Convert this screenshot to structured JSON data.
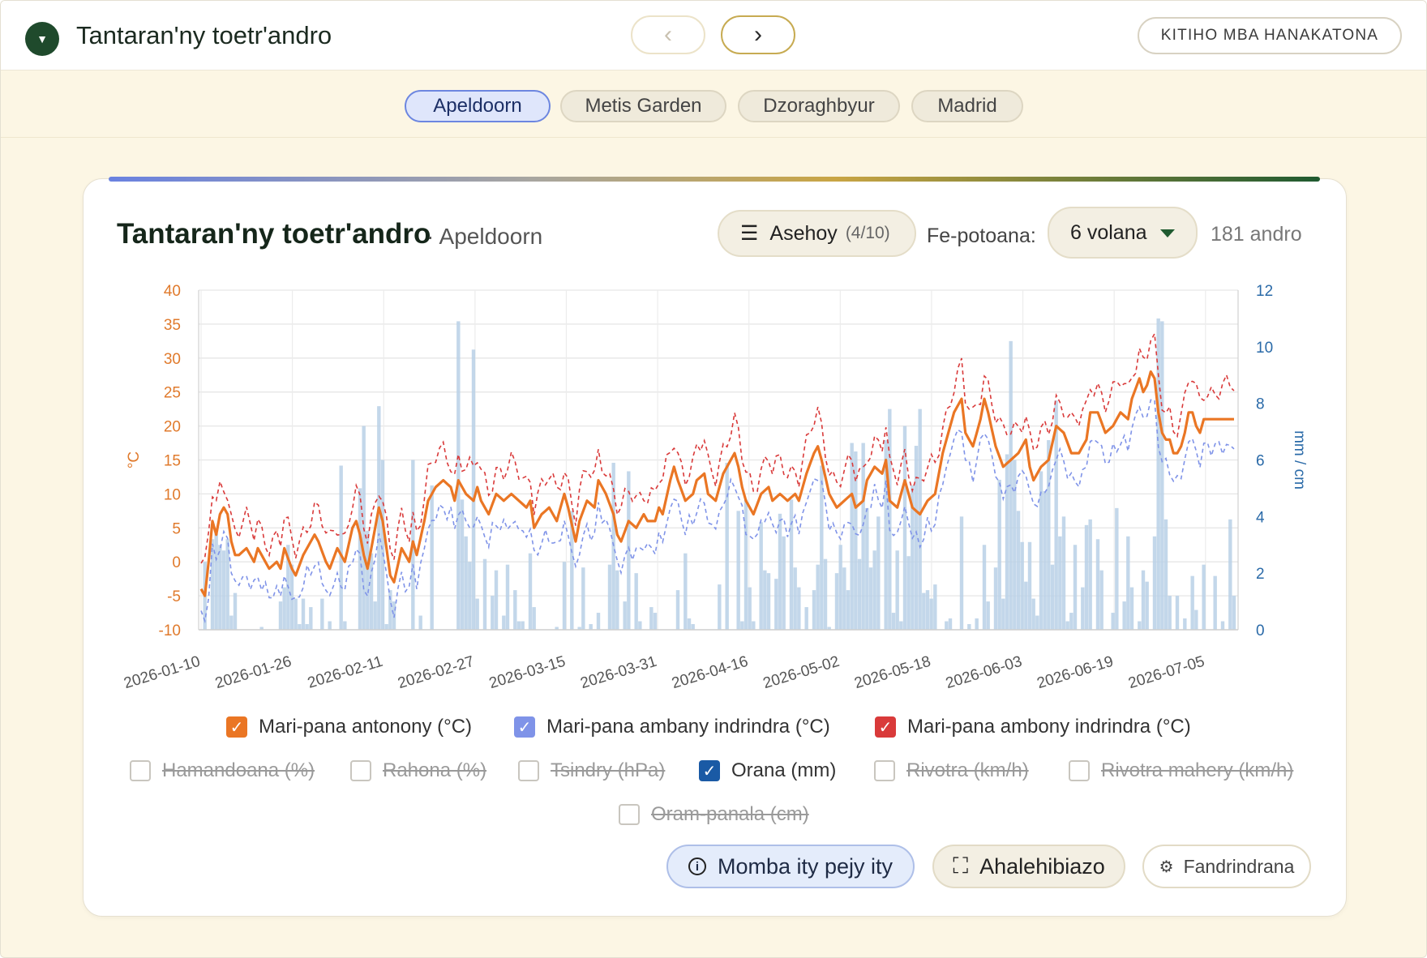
{
  "header": {
    "logo_glyph": "▼",
    "title": "Tantaran'ny toetr'andro",
    "prev": "‹",
    "next": "›",
    "cta": "KITIHO MBA HANAKATONA"
  },
  "locations": [
    "Apeldoorn",
    "Metis Garden",
    "Dzoraghbyur",
    "Madrid"
  ],
  "card": {
    "title": "Tantaran'ny toetr'andro",
    "subtitle": "· Apeldoorn",
    "menu_icon": "☰",
    "menu_label": "Asehoy",
    "menu_count": "(4/10)",
    "range_label": "Fe-potoana:",
    "range_value": "6 volana",
    "days": "181 andro"
  },
  "legend": {
    "row1": [
      {
        "label": "Mari-pana antonony (°C)",
        "checked": true,
        "color": "#ea7624"
      },
      {
        "label": "Mari-pana ambany indrindra (°C)",
        "checked": true,
        "color": "#7f93e8"
      },
      {
        "label": "Mari-pana ambony indrindra (°C)",
        "checked": true,
        "color": "#d93a3a"
      }
    ],
    "row2": [
      {
        "label": "Hamandoana (%)",
        "checked": false
      },
      {
        "label": "Rahona (%)",
        "checked": false
      },
      {
        "label": "Tsindry (hPa)",
        "checked": false
      },
      {
        "label": "Orana (mm)",
        "checked": true,
        "color": "#1a5aa5"
      },
      {
        "label": "Rivotra (km/h)",
        "checked": false
      },
      {
        "label": "Rivotra mahery (km/h)",
        "checked": false
      }
    ],
    "row3": [
      {
        "label": "Oram-panala (cm)",
        "checked": false
      }
    ],
    "check_glyph": "✓"
  },
  "buttons": {
    "info": "Momba ity pejy ity",
    "info_icon": "i",
    "fullscreen_icon": "⛶",
    "fullscreen": "Ahalehibiazo",
    "settings_icon": "⚙",
    "settings": "Fandrindrana"
  },
  "colors": {
    "mean": "#ea7624",
    "min": "#7f93e8",
    "max": "#d93a3a",
    "rain": "#b9d0e6",
    "left_axis": "#e07a2c",
    "right_axis": "#2a6aa8"
  },
  "chart_data": {
    "type": "line+bar",
    "x_dates": [
      "2026-01-10",
      "2026-01-26",
      "2026-02-11",
      "2026-02-27",
      "2026-03-15",
      "2026-03-31",
      "2026-04-16",
      "2026-05-02",
      "2026-05-18",
      "2026-06-03",
      "2026-06-19",
      "2026-07-05"
    ],
    "y_left_label": "°C",
    "y_left_ticks": [
      "40",
      "35",
      "30",
      "25",
      "20",
      "15",
      "10",
      "5",
      "0",
      "-5",
      "-10"
    ],
    "y_left_range": [
      -10,
      40
    ],
    "y_right_label": "mm / cm",
    "y_right_ticks": [
      "12",
      "10",
      "8",
      "6",
      "4",
      "2",
      "0"
    ],
    "y_right_range": [
      0,
      12
    ],
    "days": 181,
    "series_keys": [
      {
        "name": "Mari-pana antonony (°C)",
        "key": "mean",
        "axis": "left",
        "style": "solid"
      },
      {
        "name": "Mari-pana ambany indrindra (°C)",
        "key": "min",
        "axis": "left",
        "style": "dashed"
      },
      {
        "name": "Mari-pana ambony indrindra (°C)",
        "key": "max",
        "axis": "left",
        "style": "dashed"
      },
      {
        "name": "Orana (mm)",
        "key": "rain",
        "axis": "right",
        "style": "bar"
      }
    ],
    "mean_anchors": [
      [
        0,
        -4
      ],
      [
        1,
        -5
      ],
      [
        2,
        0
      ],
      [
        3,
        6
      ],
      [
        4,
        4
      ],
      [
        5,
        7
      ],
      [
        6,
        8
      ],
      [
        7,
        7
      ],
      [
        8,
        3
      ],
      [
        9,
        1
      ],
      [
        10,
        1
      ],
      [
        12,
        2
      ],
      [
        13,
        1
      ],
      [
        14,
        0
      ],
      [
        15,
        2
      ],
      [
        16,
        1
      ],
      [
        18,
        -1
      ],
      [
        20,
        0
      ],
      [
        21,
        -1
      ],
      [
        22,
        2
      ],
      [
        24,
        -1
      ],
      [
        25,
        -2
      ],
      [
        27,
        1
      ],
      [
        29,
        3
      ],
      [
        30,
        4
      ],
      [
        31,
        3
      ],
      [
        33,
        0
      ],
      [
        34,
        -1
      ],
      [
        36,
        2
      ],
      [
        38,
        0
      ],
      [
        40,
        5
      ],
      [
        41,
        6
      ],
      [
        42,
        4
      ],
      [
        43,
        1
      ],
      [
        44,
        -1
      ],
      [
        46,
        5
      ],
      [
        47,
        8
      ],
      [
        48,
        6
      ],
      [
        50,
        -2
      ],
      [
        51,
        -3
      ],
      [
        53,
        2
      ],
      [
        55,
        0
      ],
      [
        56,
        3
      ],
      [
        57,
        1
      ],
      [
        59,
        6
      ],
      [
        60,
        9
      ],
      [
        62,
        11
      ],
      [
        64,
        12
      ],
      [
        66,
        11
      ],
      [
        67,
        9
      ],
      [
        68,
        12
      ],
      [
        70,
        10
      ],
      [
        72,
        9
      ],
      [
        73,
        11
      ],
      [
        74,
        9
      ],
      [
        76,
        7
      ],
      [
        78,
        10
      ],
      [
        80,
        9
      ],
      [
        82,
        10
      ],
      [
        84,
        9
      ],
      [
        86,
        8
      ],
      [
        87,
        9
      ],
      [
        88,
        5
      ],
      [
        90,
        7
      ],
      [
        92,
        8
      ],
      [
        94,
        6
      ],
      [
        96,
        10
      ],
      [
        97,
        8
      ],
      [
        99,
        3
      ],
      [
        100,
        6
      ],
      [
        102,
        9
      ],
      [
        104,
        8
      ],
      [
        105,
        12
      ],
      [
        107,
        10
      ],
      [
        109,
        7
      ],
      [
        110,
        4
      ],
      [
        111,
        3
      ],
      [
        113,
        6
      ],
      [
        115,
        5
      ],
      [
        117,
        7
      ],
      [
        118,
        6
      ],
      [
        120,
        6
      ],
      [
        121,
        8
      ],
      [
        122,
        7
      ],
      [
        124,
        12
      ],
      [
        125,
        14
      ],
      [
        126,
        12
      ],
      [
        128,
        9
      ],
      [
        130,
        10
      ],
      [
        131,
        12
      ],
      [
        133,
        13
      ],
      [
        134,
        10
      ],
      [
        136,
        9
      ],
      [
        138,
        13
      ],
      [
        140,
        15
      ],
      [
        141,
        16
      ],
      [
        142,
        14
      ],
      [
        143,
        11
      ],
      [
        144,
        9
      ],
      [
        146,
        7
      ],
      [
        148,
        10
      ],
      [
        150,
        11
      ],
      [
        151,
        9
      ],
      [
        153,
        10
      ],
      [
        155,
        9
      ],
      [
        157,
        10
      ],
      [
        158,
        9
      ],
      [
        160,
        13
      ],
      [
        162,
        16
      ],
      [
        163,
        17
      ],
      [
        164,
        15
      ],
      [
        166,
        10
      ],
      [
        168,
        8
      ],
      [
        170,
        9
      ],
      [
        172,
        10
      ],
      [
        173,
        8
      ],
      [
        175,
        9
      ],
      [
        176,
        12
      ],
      [
        178,
        14
      ],
      [
        180,
        13
      ],
      [
        181,
        15
      ],
      [
        182,
        9
      ],
      [
        184,
        8
      ],
      [
        186,
        12
      ],
      [
        188,
        8
      ],
      [
        190,
        7
      ],
      [
        192,
        9
      ],
      [
        194,
        10
      ],
      [
        196,
        16
      ],
      [
        198,
        20
      ],
      [
        199,
        22
      ],
      [
        201,
        24
      ],
      [
        202,
        19
      ],
      [
        204,
        17
      ],
      [
        206,
        21
      ],
      [
        207,
        24
      ],
      [
        208,
        22
      ],
      [
        210,
        17
      ],
      [
        212,
        14
      ],
      [
        214,
        15
      ],
      [
        216,
        16
      ],
      [
        218,
        18
      ],
      [
        219,
        14
      ],
      [
        220,
        12
      ],
      [
        222,
        14
      ],
      [
        224,
        15
      ],
      [
        226,
        20
      ],
      [
        228,
        19
      ],
      [
        230,
        16
      ],
      [
        232,
        16
      ],
      [
        234,
        18
      ],
      [
        235,
        22
      ],
      [
        237,
        22
      ],
      [
        239,
        19
      ],
      [
        241,
        20
      ],
      [
        243,
        22
      ],
      [
        245,
        21
      ],
      [
        246,
        24
      ],
      [
        248,
        27
      ],
      [
        249,
        25
      ],
      [
        250,
        26
      ],
      [
        251,
        28
      ],
      [
        252,
        27
      ],
      [
        253,
        22
      ],
      [
        254,
        19
      ],
      [
        255,
        18
      ],
      [
        256,
        18
      ],
      [
        257,
        16
      ],
      [
        258,
        16
      ],
      [
        259,
        17
      ],
      [
        260,
        19
      ],
      [
        261,
        22
      ],
      [
        262,
        22
      ],
      [
        263,
        20
      ],
      [
        264,
        19
      ],
      [
        265,
        21
      ]
    ],
    "rain_mm": [
      [
        1,
        2.4
      ],
      [
        3,
        3.2
      ],
      [
        4,
        3.4
      ],
      [
        5,
        3.0
      ],
      [
        6,
        2.8
      ],
      [
        7,
        3.2
      ],
      [
        8,
        0.5
      ],
      [
        9,
        1.3
      ],
      [
        16,
        0.1
      ],
      [
        21,
        1.0
      ],
      [
        22,
        1.5
      ],
      [
        23,
        3.0
      ],
      [
        24,
        2.3
      ],
      [
        25,
        1.1
      ],
      [
        26,
        0.2
      ],
      [
        27,
        1.1
      ],
      [
        28,
        0.2
      ],
      [
        29,
        0.8
      ],
      [
        32,
        1.1
      ],
      [
        34,
        0.3
      ],
      [
        37,
        5.8
      ],
      [
        38,
        0.3
      ],
      [
        42,
        5.0
      ],
      [
        43,
        7.2
      ],
      [
        44,
        3.5
      ],
      [
        45,
        2.7
      ],
      [
        46,
        1.0
      ],
      [
        47,
        7.9
      ],
      [
        48,
        6.0
      ],
      [
        49,
        0.2
      ],
      [
        50,
        1.4
      ],
      [
        51,
        1.0
      ],
      [
        56,
        6.0
      ],
      [
        58,
        0.5
      ],
      [
        61,
        5.1
      ],
      [
        68,
        10.9
      ],
      [
        69,
        4.6
      ],
      [
        70,
        3.3
      ],
      [
        71,
        2.4
      ],
      [
        72,
        9.9
      ],
      [
        73,
        1.1
      ],
      [
        75,
        2.5
      ],
      [
        77,
        1.2
      ],
      [
        78,
        2.1
      ],
      [
        80,
        0.5
      ],
      [
        81,
        2.3
      ],
      [
        83,
        1.4
      ],
      [
        84,
        0.3
      ],
      [
        85,
        0.3
      ],
      [
        87,
        2.7
      ],
      [
        88,
        0.8
      ],
      [
        94,
        0.1
      ],
      [
        96,
        2.4
      ],
      [
        98,
        4.2
      ],
      [
        100,
        0.1
      ],
      [
        101,
        2.2
      ],
      [
        103,
        0.2
      ],
      [
        105,
        0.6
      ],
      [
        108,
        2.3
      ],
      [
        109,
        5.9
      ],
      [
        110,
        2.1
      ],
      [
        112,
        1.0
      ],
      [
        113,
        5.6
      ],
      [
        115,
        2.0
      ],
      [
        116,
        0.3
      ],
      [
        119,
        0.8
      ],
      [
        120,
        0.6
      ],
      [
        126,
        1.4
      ],
      [
        128,
        2.7
      ],
      [
        129,
        0.4
      ],
      [
        130,
        0.2
      ],
      [
        137,
        1.6
      ],
      [
        139,
        5.9
      ],
      [
        142,
        4.2
      ],
      [
        143,
        0.3
      ],
      [
        144,
        4.6
      ],
      [
        145,
        1.5
      ],
      [
        146,
        0.3
      ],
      [
        148,
        3.8
      ],
      [
        149,
        2.1
      ],
      [
        150,
        2.0
      ],
      [
        152,
        1.8
      ],
      [
        153,
        4.1
      ],
      [
        154,
        3.3
      ],
      [
        156,
        4.6
      ],
      [
        157,
        2.2
      ],
      [
        158,
        1.5
      ],
      [
        160,
        0.8
      ],
      [
        162,
        1.4
      ],
      [
        163,
        2.3
      ],
      [
        164,
        5.8
      ],
      [
        165,
        2.5
      ],
      [
        166,
        0.1
      ],
      [
        168,
        2.0
      ],
      [
        169,
        3.0
      ],
      [
        170,
        2.2
      ],
      [
        171,
        1.4
      ],
      [
        172,
        6.6
      ],
      [
        173,
        6.3
      ],
      [
        174,
        2.5
      ],
      [
        175,
        6.6
      ],
      [
        176,
        4.3
      ],
      [
        177,
        2.2
      ],
      [
        178,
        2.8
      ],
      [
        179,
        4.0
      ],
      [
        181,
        6.7
      ],
      [
        182,
        7.8
      ],
      [
        183,
        0.6
      ],
      [
        184,
        2.8
      ],
      [
        185,
        0.3
      ],
      [
        186,
        7.2
      ],
      [
        187,
        2.6
      ],
      [
        188,
        5.1
      ],
      [
        189,
        6.5
      ],
      [
        190,
        7.8
      ],
      [
        191,
        1.3
      ],
      [
        192,
        1.4
      ],
      [
        193,
        1.1
      ],
      [
        194,
        1.6
      ],
      [
        197,
        0.3
      ],
      [
        198,
        0.4
      ],
      [
        201,
        4.0
      ],
      [
        203,
        0.2
      ],
      [
        205,
        0.4
      ],
      [
        207,
        3.0
      ],
      [
        208,
        1.0
      ],
      [
        210,
        2.2
      ],
      [
        211,
        5.3
      ],
      [
        212,
        1.1
      ],
      [
        213,
        6.2
      ],
      [
        214,
        10.2
      ],
      [
        215,
        6.0
      ],
      [
        216,
        4.2
      ],
      [
        217,
        3.1
      ],
      [
        218,
        1.7
      ],
      [
        219,
        3.1
      ],
      [
        220,
        1.1
      ],
      [
        221,
        0.5
      ],
      [
        222,
        5.6
      ],
      [
        223,
        4.9
      ],
      [
        224,
        6.7
      ],
      [
        225,
        2.3
      ],
      [
        226,
        8.1
      ],
      [
        227,
        3.3
      ],
      [
        228,
        4.0
      ],
      [
        229,
        0.3
      ],
      [
        230,
        0.6
      ],
      [
        231,
        3.0
      ],
      [
        233,
        1.5
      ],
      [
        234,
        3.7
      ],
      [
        235,
        3.9
      ],
      [
        237,
        3.2
      ],
      [
        238,
        2.1
      ],
      [
        241,
        0.6
      ],
      [
        242,
        4.3
      ],
      [
        244,
        1.0
      ],
      [
        245,
        3.3
      ],
      [
        246,
        1.5
      ],
      [
        248,
        0.3
      ],
      [
        249,
        2.1
      ],
      [
        250,
        1.7
      ],
      [
        252,
        3.3
      ],
      [
        253,
        11.0
      ],
      [
        254,
        10.9
      ],
      [
        255,
        3.9
      ],
      [
        256,
        1.2
      ],
      [
        258,
        1.2
      ],
      [
        260,
        0.4
      ],
      [
        262,
        1.9
      ],
      [
        263,
        0.7
      ],
      [
        265,
        2.3
      ],
      [
        268,
        1.9
      ],
      [
        270,
        0.3
      ],
      [
        272,
        3.9
      ],
      [
        273,
        1.2
      ]
    ]
  }
}
